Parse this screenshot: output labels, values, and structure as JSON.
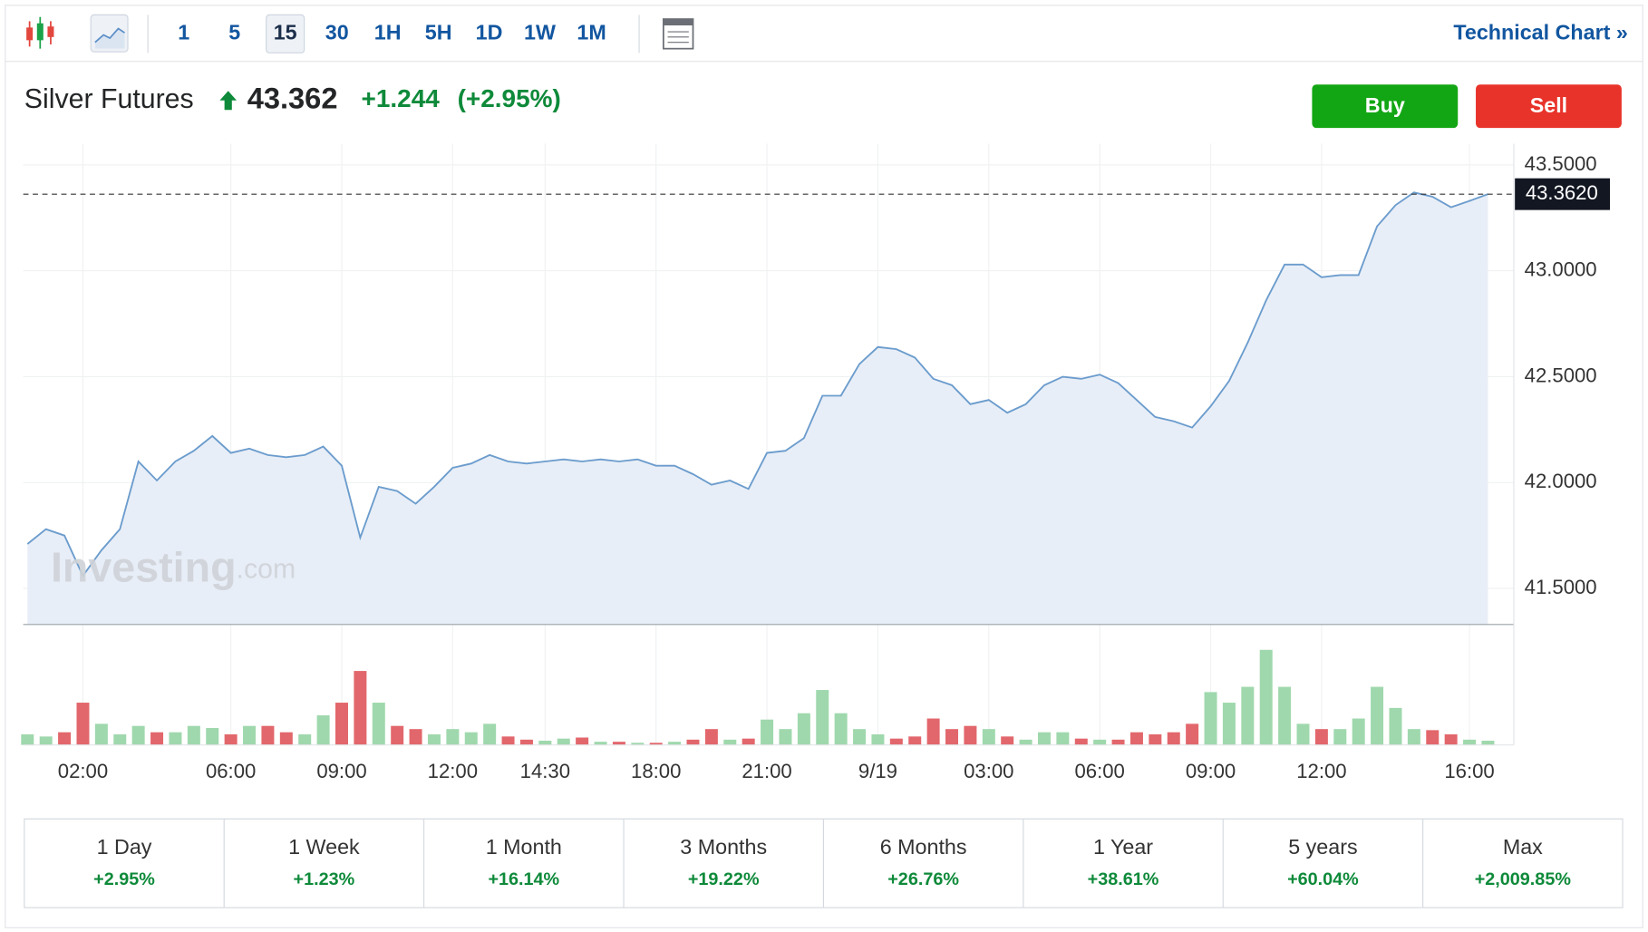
{
  "toolbar": {
    "intervals": [
      "1",
      "5",
      "15",
      "30",
      "1H",
      "5H",
      "1D",
      "1W",
      "1M"
    ],
    "selected": "15",
    "link": "Technical Chart »"
  },
  "instrument": {
    "name": "Silver Futures",
    "price": "43.362",
    "change": "+1.244",
    "change_percent": "(+2.95%)"
  },
  "buttons": {
    "buy": "Buy",
    "sell": "Sell"
  },
  "watermark": {
    "brand": "Investing",
    "suffix": ".com"
  },
  "chart_data": [
    {
      "type": "line",
      "color": "#6b9ccd",
      "area_color": "#e8eef7",
      "categories": [
        null,
        null,
        null,
        "02:00",
        null,
        null,
        null,
        null,
        null,
        null,
        null,
        "06:00",
        null,
        null,
        null,
        null,
        null,
        "09:00",
        null,
        null,
        null,
        null,
        null,
        "12:00",
        null,
        null,
        null,
        null,
        "14:30",
        null,
        null,
        null,
        null,
        null,
        "18:00",
        null,
        null,
        null,
        null,
        null,
        "21:00",
        null,
        null,
        null,
        null,
        null,
        "9/19",
        null,
        null,
        null,
        null,
        null,
        "03:00",
        null,
        null,
        null,
        null,
        null,
        "06:00",
        null,
        null,
        null,
        null,
        null,
        "09:00",
        null,
        null,
        null,
        null,
        null,
        "12:00",
        null,
        null,
        null,
        null,
        null,
        null,
        null,
        "16:00",
        null
      ],
      "values": [
        41.71,
        41.78,
        41.75,
        41.56,
        41.68,
        41.78,
        42.1,
        42.01,
        42.1,
        42.15,
        42.22,
        42.14,
        42.16,
        42.13,
        42.12,
        42.13,
        42.17,
        42.08,
        41.74,
        41.98,
        41.96,
        41.9,
        41.98,
        42.07,
        42.09,
        42.13,
        42.1,
        42.09,
        42.1,
        42.11,
        42.1,
        42.11,
        42.1,
        42.11,
        42.08,
        42.08,
        42.04,
        41.99,
        42.01,
        41.97,
        42.14,
        42.15,
        42.21,
        42.41,
        42.41,
        42.56,
        42.64,
        42.63,
        42.59,
        42.49,
        42.46,
        42.37,
        42.39,
        42.33,
        42.37,
        42.46,
        42.5,
        42.49,
        42.51,
        42.47,
        42.39,
        42.31,
        42.29,
        42.26,
        42.36,
        42.48,
        42.66,
        42.86,
        43.03,
        43.03,
        42.97,
        42.98,
        42.98,
        43.21,
        43.31,
        43.37,
        43.35,
        43.3,
        43.33,
        43.362
      ],
      "ylim": [
        41.33,
        43.6
      ],
      "yticks": [
        {
          "value": 41.5,
          "label": "41.5000"
        },
        {
          "value": 42,
          "label": "42.0000"
        },
        {
          "value": 42.5,
          "label": "42.5000"
        },
        {
          "value": 43,
          "label": "43.0000"
        },
        {
          "value": 43.5,
          "label": "43.5000"
        }
      ],
      "last_price": {
        "value": 43.362,
        "label": "43.3620"
      },
      "grid": true
    },
    {
      "type": "bar",
      "values": [
        10,
        8,
        12,
        40,
        20,
        10,
        18,
        12,
        12,
        18,
        16,
        10,
        18,
        18,
        12,
        10,
        28,
        40,
        70,
        40,
        18,
        15,
        10,
        15,
        12,
        20,
        8,
        5,
        4,
        6,
        7,
        3,
        3,
        2,
        2,
        3,
        5,
        15,
        5,
        6,
        24,
        15,
        30,
        52,
        30,
        15,
        10,
        6,
        8,
        25,
        15,
        18,
        15,
        8,
        5,
        12,
        12,
        6,
        5,
        5,
        12,
        10,
        12,
        20,
        50,
        40,
        55,
        90,
        55,
        20,
        15,
        15,
        25,
        55,
        35,
        15,
        14,
        10,
        5,
        4
      ],
      "ylim": [
        0,
        100
      ],
      "up_color": "#9fd8ad",
      "down_color": "#e2676c"
    }
  ],
  "periods": [
    {
      "label": "1 Day",
      "change": "+2.95%"
    },
    {
      "label": "1 Week",
      "change": "+1.23%"
    },
    {
      "label": "1 Month",
      "change": "+16.14%"
    },
    {
      "label": "3 Months",
      "change": "+19.22%"
    },
    {
      "label": "6 Months",
      "change": "+26.76%"
    },
    {
      "label": "1 Year",
      "change": "+38.61%"
    },
    {
      "label": "5 years",
      "change": "+60.04%"
    },
    {
      "label": "Max",
      "change": "+2,009.85%"
    }
  ]
}
